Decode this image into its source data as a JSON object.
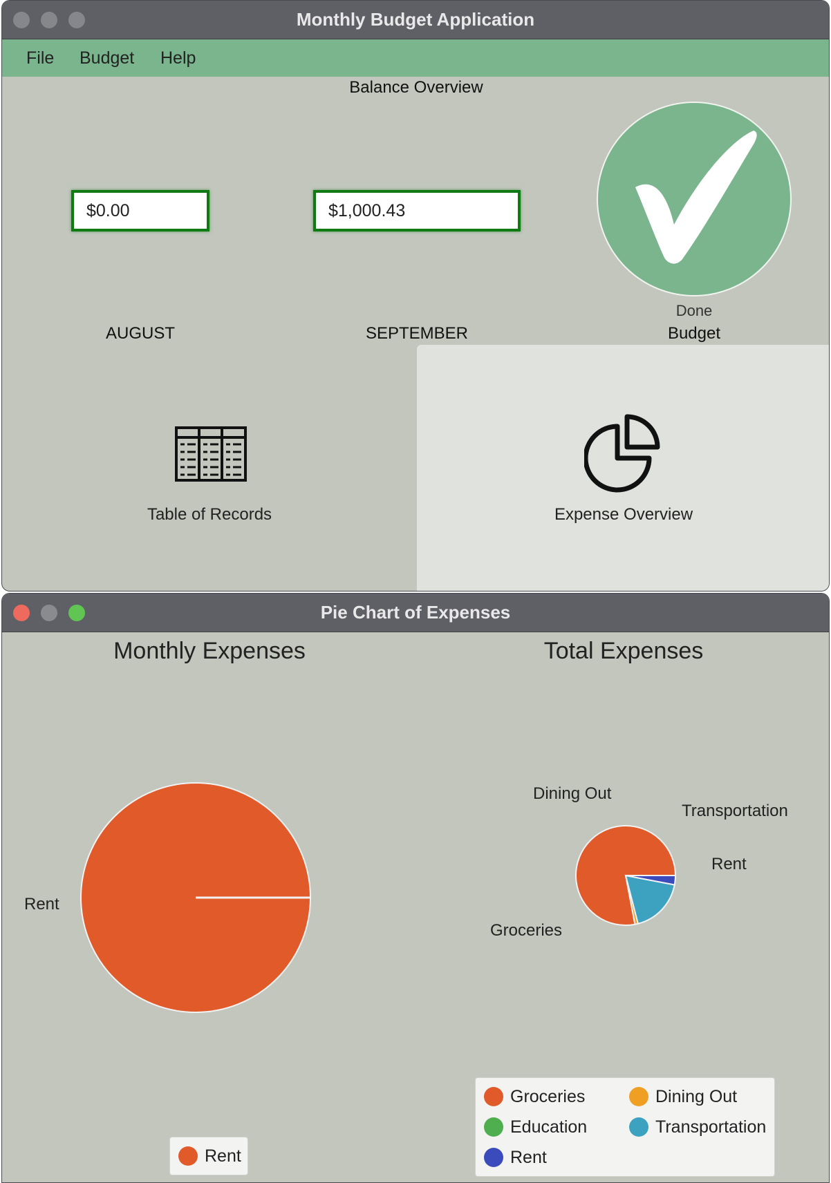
{
  "main_window": {
    "title": "Monthly Budget Application",
    "menu": {
      "file": "File",
      "budget": "Budget",
      "help": "Help"
    },
    "balance_title": "Balance Overview",
    "august": {
      "amount": "$0.00",
      "label": "AUGUST"
    },
    "september": {
      "amount": "$1,000.43",
      "label": "SEPTEMBER"
    },
    "done_label": "Done",
    "budget_label": "Budget",
    "records_label": "Table of Records",
    "expense_label": "Expense Overview"
  },
  "chart_window": {
    "title": "Pie Chart of Expenses"
  },
  "colors": {
    "groceries": "#e15a2a",
    "dining_out": "#efa024",
    "education": "#4fae4d",
    "transportation": "#3da2c0",
    "rent": "#3b4bbb",
    "menu_green": "#7ab58e"
  },
  "chart_data": [
    {
      "type": "pie",
      "title": "Monthly Expenses",
      "labels": [
        "Rent"
      ],
      "values": [
        100
      ],
      "slice_label": "Rent",
      "legend": [
        "Rent"
      ],
      "legend_position": "bottom"
    },
    {
      "type": "pie",
      "title": "Total Expenses",
      "labels": [
        "Groceries",
        "Dining Out",
        "Transportation",
        "Rent"
      ],
      "values": [
        78,
        1,
        18,
        3
      ],
      "slice_labels": {
        "dining_out": "Dining Out",
        "transportation": "Transportation",
        "rent": "Rent",
        "groceries": "Groceries"
      },
      "legend": [
        "Groceries",
        "Dining Out",
        "Education",
        "Transportation",
        "Rent"
      ],
      "legend_position": "bottom"
    }
  ]
}
